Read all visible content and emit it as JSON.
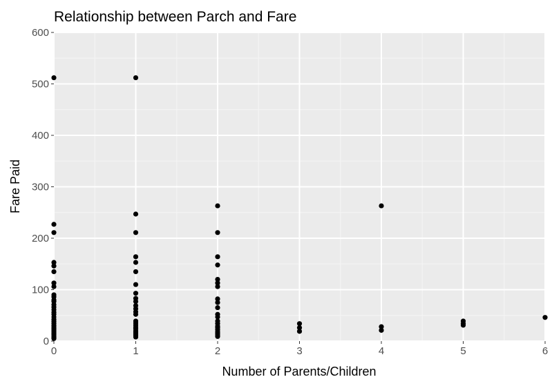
{
  "chart_data": {
    "type": "scatter",
    "title": "Relationship between Parch and Fare",
    "xlabel": "Number of Parents/Children",
    "ylabel": "Fare Paid",
    "xlim": [
      0,
      6
    ],
    "ylim": [
      0,
      600
    ],
    "x_ticks": [
      "0",
      "1",
      "2",
      "3",
      "4",
      "5",
      "6"
    ],
    "y_ticks": [
      "0",
      "100",
      "200",
      "300",
      "400",
      "500",
      "600"
    ],
    "grid": true,
    "legend": "none",
    "colors": {
      "panel": "#ebebeb",
      "grid_major": "#ffffff",
      "grid_minor": "#f5f5f5",
      "point": "#000000",
      "tick_label": "#4d4d4d"
    },
    "points": [
      {
        "x": 0,
        "y": 512
      },
      {
        "x": 0,
        "y": 227
      },
      {
        "x": 0,
        "y": 211
      },
      {
        "x": 0,
        "y": 153
      },
      {
        "x": 0,
        "y": 146
      },
      {
        "x": 0,
        "y": 135
      },
      {
        "x": 0,
        "y": 113
      },
      {
        "x": 0,
        "y": 106
      },
      {
        "x": 0,
        "y": 90
      },
      {
        "x": 0,
        "y": 86
      },
      {
        "x": 0,
        "y": 80
      },
      {
        "x": 0,
        "y": 77
      },
      {
        "x": 0,
        "y": 71
      },
      {
        "x": 0,
        "y": 66
      },
      {
        "x": 0,
        "y": 61
      },
      {
        "x": 0,
        "y": 56
      },
      {
        "x": 0,
        "y": 52
      },
      {
        "x": 0,
        "y": 47
      },
      {
        "x": 0,
        "y": 42
      },
      {
        "x": 0,
        "y": 38
      },
      {
        "x": 0,
        "y": 34
      },
      {
        "x": 0,
        "y": 30
      },
      {
        "x": 0,
        "y": 27
      },
      {
        "x": 0,
        "y": 24
      },
      {
        "x": 0,
        "y": 21
      },
      {
        "x": 0,
        "y": 18
      },
      {
        "x": 0,
        "y": 15
      },
      {
        "x": 0,
        "y": 13
      },
      {
        "x": 0,
        "y": 10
      },
      {
        "x": 0,
        "y": 8
      },
      {
        "x": 0,
        "y": 7
      },
      {
        "x": 0,
        "y": 5
      },
      {
        "x": 1,
        "y": 512
      },
      {
        "x": 1,
        "y": 247
      },
      {
        "x": 1,
        "y": 211
      },
      {
        "x": 1,
        "y": 164
      },
      {
        "x": 1,
        "y": 153
      },
      {
        "x": 1,
        "y": 135
      },
      {
        "x": 1,
        "y": 110
      },
      {
        "x": 1,
        "y": 93
      },
      {
        "x": 1,
        "y": 83
      },
      {
        "x": 1,
        "y": 77
      },
      {
        "x": 1,
        "y": 69
      },
      {
        "x": 1,
        "y": 63
      },
      {
        "x": 1,
        "y": 57
      },
      {
        "x": 1,
        "y": 52
      },
      {
        "x": 1,
        "y": 39
      },
      {
        "x": 1,
        "y": 35
      },
      {
        "x": 1,
        "y": 31
      },
      {
        "x": 1,
        "y": 27
      },
      {
        "x": 1,
        "y": 24
      },
      {
        "x": 1,
        "y": 20
      },
      {
        "x": 1,
        "y": 17
      },
      {
        "x": 1,
        "y": 14
      },
      {
        "x": 1,
        "y": 11
      },
      {
        "x": 1,
        "y": 8
      },
      {
        "x": 2,
        "y": 263
      },
      {
        "x": 2,
        "y": 211
      },
      {
        "x": 2,
        "y": 164
      },
      {
        "x": 2,
        "y": 148
      },
      {
        "x": 2,
        "y": 120
      },
      {
        "x": 2,
        "y": 113
      },
      {
        "x": 2,
        "y": 106
      },
      {
        "x": 2,
        "y": 82
      },
      {
        "x": 2,
        "y": 75
      },
      {
        "x": 2,
        "y": 65
      },
      {
        "x": 2,
        "y": 52
      },
      {
        "x": 2,
        "y": 47
      },
      {
        "x": 2,
        "y": 39
      },
      {
        "x": 2,
        "y": 34
      },
      {
        "x": 2,
        "y": 29
      },
      {
        "x": 2,
        "y": 26
      },
      {
        "x": 2,
        "y": 22
      },
      {
        "x": 2,
        "y": 18
      },
      {
        "x": 2,
        "y": 15
      },
      {
        "x": 2,
        "y": 12
      },
      {
        "x": 2,
        "y": 9
      },
      {
        "x": 3,
        "y": 34
      },
      {
        "x": 3,
        "y": 26
      },
      {
        "x": 3,
        "y": 19
      },
      {
        "x": 4,
        "y": 263
      },
      {
        "x": 4,
        "y": 28
      },
      {
        "x": 4,
        "y": 21
      },
      {
        "x": 5,
        "y": 39
      },
      {
        "x": 5,
        "y": 34
      },
      {
        "x": 5,
        "y": 31
      },
      {
        "x": 6,
        "y": 46
      }
    ]
  }
}
